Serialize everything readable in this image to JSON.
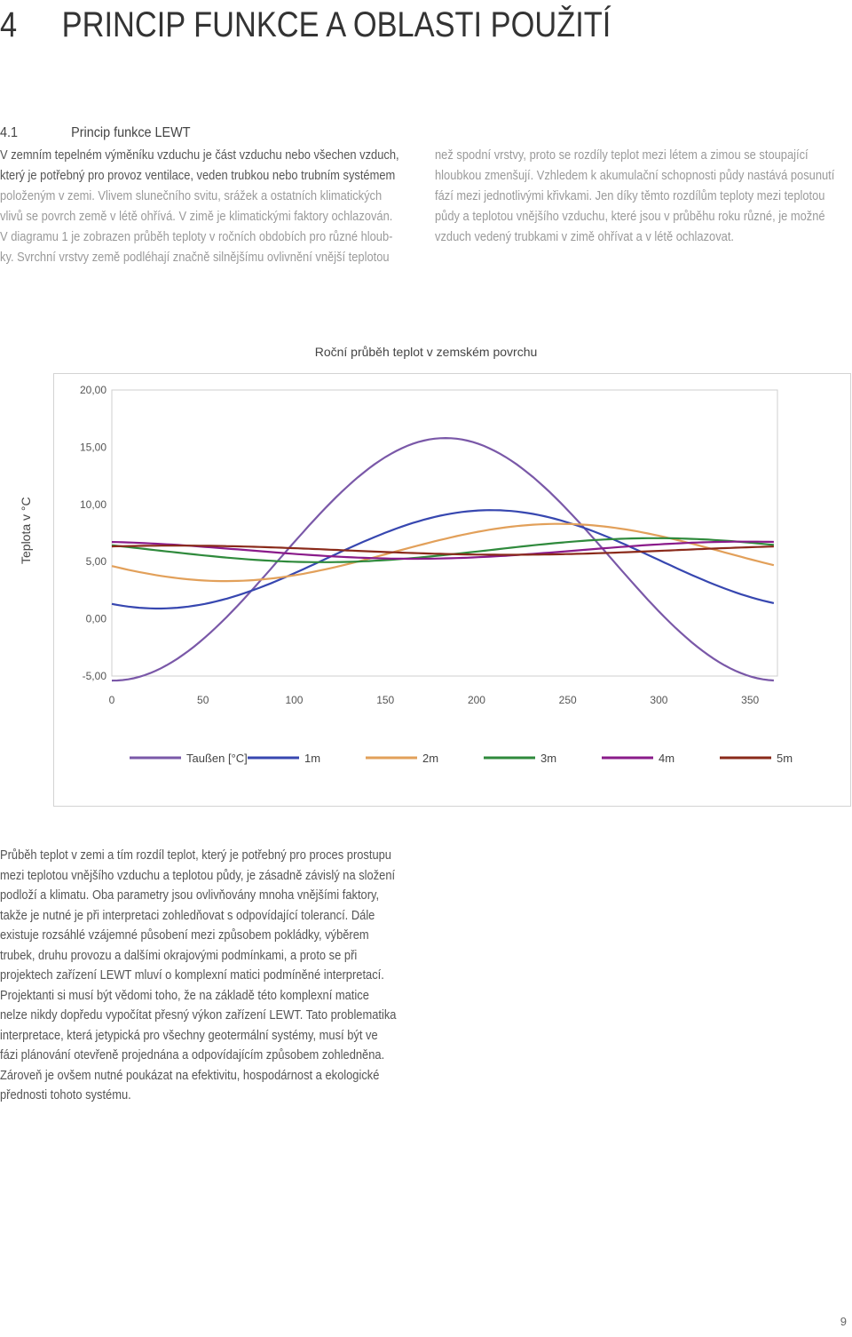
{
  "heading": {
    "number": "4",
    "title": "PRINCIP FUNKCE A OBLASTI POUŽITÍ"
  },
  "section": {
    "number": "4.1",
    "title": "Princip funkce LEWT"
  },
  "left_column": [
    "V zemním tepelném výměníku vzduchu je část vzduchu nebo všechen vzduch,",
    "který je potřebný pro provoz ventilace, veden trubkou nebo trubním systémem",
    "položeným v zemi. Vlivem slunečního svitu, srážek a ostatních klimatických",
    "vlivů se povrch země v létě ohřívá. V zimě je klimatickými faktory ochlazován.",
    "V diagramu 1 je zobrazen průběh teploty v ročních obdobích pro různé hloub-",
    "ky. Svrchní vrstvy země podléhají značně silnějšímu ovlivnění vnější teplotou"
  ],
  "right_column": [
    "než spodní vrstvy, proto se rozdíly teplot mezi létem a zimou se stoupající",
    "hloubkou zmenšují. Vzhledem k akumulační schopnosti půdy nastává posunutí",
    "fází mezi jednotlivými křivkami. Jen díky těmto rozdílům teploty mezi teplotou",
    "půdy a teplotou vnějšího vzduchu, které jsou v průběhu roku různé, je možné",
    "vzduch vedený trubkami v zimě ohřívat a v létě ochlazovat."
  ],
  "chart_title": "Roční průběh teplot v zemském povrchu",
  "chart_data": {
    "type": "line",
    "ylabel": "Teplota v °C",
    "xlabel": "",
    "x_ticks": [
      "0",
      "50",
      "100",
      "150",
      "200",
      "250",
      "300",
      "350"
    ],
    "y_ticks": [
      "20,00",
      "15,00",
      "10,00",
      "5,00",
      "0,00",
      "-5,00"
    ],
    "xlim": [
      0,
      365
    ],
    "ylim": [
      -5,
      20
    ],
    "grid": false,
    "legend_position": "bottom",
    "series": [
      {
        "name": "Taußen [°C]",
        "color": "#7a58a8",
        "mean": 5.2,
        "amp": 10.6,
        "peak_day": 183
      },
      {
        "name": "1m",
        "color": "#3747b0",
        "mean": 5.2,
        "amp": 4.3,
        "peak_day": 208
      },
      {
        "name": "2m",
        "color": "#e2a05a",
        "mean": 5.8,
        "amp": 2.5,
        "peak_day": 245
      },
      {
        "name": "3m",
        "color": "#2f8a3c",
        "mean": 6.0,
        "amp": 1.05,
        "peak_day": 298
      },
      {
        "name": "4m",
        "color": "#8a1b8a",
        "mean": 6.0,
        "amp": 0.75,
        "peak_day": 348
      },
      {
        "name": "5m",
        "color": "#8a2a1a",
        "mean": 6.0,
        "amp": 0.4,
        "peak_day": 35
      }
    ]
  },
  "body_lines": [
    "Průběh teplot v zemi a tím rozdíl teplot, který je potřebný pro proces prostupu",
    "mezi teplotou vnějšího vzduchu a teplotou půdy, je zásadně závislý na složení",
    "podloží a klimatu. Oba parametry jsou ovlivňovány mnoha vnějšími faktory,",
    "takže je nutné je při interpretaci zohledňovat s odpovídající tolerancí. Dále",
    "existuje rozsáhlé vzájemné působení mezi způsobem pokládky, výběrem",
    "trubek, druhu provozu a dalšími okrajovými podmínkami, a proto se při",
    "projektech zařízení LEWT mluví o komplexní matici podmíněné interpretací.",
    "Projektanti si musí být vědomi toho, že na základě této komplexní matice",
    "nelze nikdy dopředu vypočítat přesný výkon zařízení LEWT.  Tato problematika",
    "interpretace, která jetypická pro všechny geotermální systémy, musí být ve",
    "fázi plánování otevřeně projednána a odpovídajícím způsobem zohledněna.",
    "Zároveň je ovšem nutné poukázat na efektivitu, hospodárnost a ekologické",
    "přednosti tohoto systému."
  ],
  "page_number": "9"
}
